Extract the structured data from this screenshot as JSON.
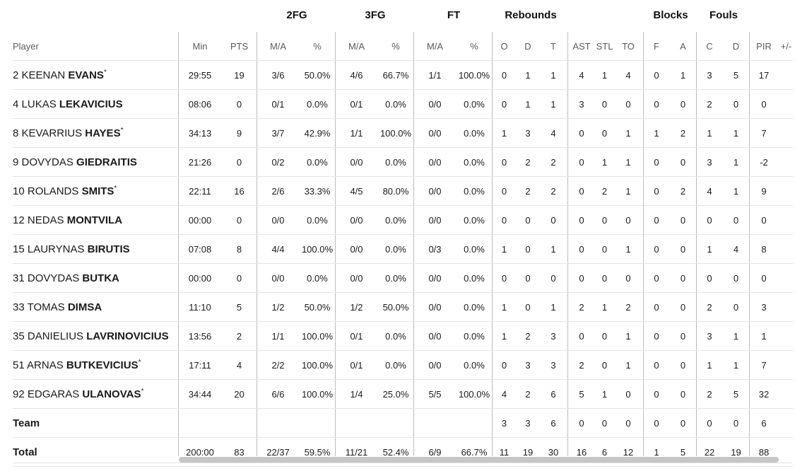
{
  "groups": {
    "fg2": "2FG",
    "fg3": "3FG",
    "ft": "FT",
    "rebounds": "Rebounds",
    "blocks": "Blocks",
    "fouls": "Fouls"
  },
  "headers": [
    "Player",
    "Min",
    "PTS",
    "M/A",
    "%",
    "M/A",
    "%",
    "M/A",
    "%",
    "O",
    "D",
    "T",
    "AST",
    "STL",
    "TO",
    "F",
    "A",
    "C",
    "D",
    "PIR",
    "+/-"
  ],
  "players": [
    {
      "num": "2",
      "first": "KEENAN",
      "last": "EVANS",
      "star": true,
      "stats": [
        "29:55",
        "19",
        "3/6",
        "50.0%",
        "4/6",
        "66.7%",
        "1/1",
        "100.0%",
        "0",
        "1",
        "1",
        "4",
        "1",
        "4",
        "0",
        "1",
        "3",
        "5",
        "17",
        ""
      ]
    },
    {
      "num": "4",
      "first": "LUKAS",
      "last": "LEKAVICIUS",
      "star": false,
      "stats": [
        "08:06",
        "0",
        "0/1",
        "0.0%",
        "0/1",
        "0.0%",
        "0/0",
        "0.0%",
        "0",
        "1",
        "1",
        "3",
        "0",
        "0",
        "0",
        "0",
        "2",
        "0",
        "0",
        ""
      ]
    },
    {
      "num": "8",
      "first": "KEVARRIUS",
      "last": "HAYES",
      "star": true,
      "stats": [
        "34:13",
        "9",
        "3/7",
        "42.9%",
        "1/1",
        "100.0%",
        "0/0",
        "0.0%",
        "1",
        "3",
        "4",
        "0",
        "0",
        "1",
        "1",
        "2",
        "1",
        "1",
        "7",
        ""
      ]
    },
    {
      "num": "9",
      "first": "DOVYDAS",
      "last": "GIEDRAITIS",
      "star": false,
      "stats": [
        "21:26",
        "0",
        "0/2",
        "0.0%",
        "0/0",
        "0.0%",
        "0/0",
        "0.0%",
        "0",
        "2",
        "2",
        "0",
        "1",
        "1",
        "0",
        "0",
        "3",
        "1",
        "-2",
        ""
      ]
    },
    {
      "num": "10",
      "first": "ROLANDS",
      "last": "SMITS",
      "star": true,
      "stats": [
        "22:11",
        "16",
        "2/6",
        "33.3%",
        "4/5",
        "80.0%",
        "0/0",
        "0.0%",
        "0",
        "2",
        "2",
        "0",
        "2",
        "1",
        "0",
        "2",
        "4",
        "1",
        "9",
        ""
      ]
    },
    {
      "num": "12",
      "first": "NEDAS",
      "last": "MONTVILA",
      "star": false,
      "stats": [
        "00:00",
        "0",
        "0/0",
        "0.0%",
        "0/0",
        "0.0%",
        "0/0",
        "0.0%",
        "0",
        "0",
        "0",
        "0",
        "0",
        "0",
        "0",
        "0",
        "0",
        "0",
        "0",
        ""
      ]
    },
    {
      "num": "15",
      "first": "LAURYNAS",
      "last": "BIRUTIS",
      "star": false,
      "stats": [
        "07:08",
        "8",
        "4/4",
        "100.0%",
        "0/0",
        "0.0%",
        "0/3",
        "0.0%",
        "1",
        "0",
        "1",
        "0",
        "0",
        "1",
        "0",
        "0",
        "1",
        "4",
        "8",
        ""
      ]
    },
    {
      "num": "31",
      "first": "DOVYDAS",
      "last": "BUTKA",
      "star": false,
      "stats": [
        "00:00",
        "0",
        "0/0",
        "0.0%",
        "0/0",
        "0.0%",
        "0/0",
        "0.0%",
        "0",
        "0",
        "0",
        "0",
        "0",
        "0",
        "0",
        "0",
        "0",
        "0",
        "0",
        ""
      ]
    },
    {
      "num": "33",
      "first": "TOMAS",
      "last": "DIMSA",
      "star": false,
      "stats": [
        "11:10",
        "5",
        "1/2",
        "50.0%",
        "1/2",
        "50.0%",
        "0/0",
        "0.0%",
        "1",
        "0",
        "1",
        "2",
        "1",
        "2",
        "0",
        "0",
        "2",
        "0",
        "3",
        ""
      ]
    },
    {
      "num": "35",
      "first": "DANIELIUS",
      "last": "LAVRINOVICIUS",
      "star": false,
      "stats": [
        "13:56",
        "2",
        "1/1",
        "100.0%",
        "0/1",
        "0.0%",
        "0/0",
        "0.0%",
        "1",
        "2",
        "3",
        "0",
        "0",
        "1",
        "0",
        "0",
        "3",
        "1",
        "1",
        ""
      ]
    },
    {
      "num": "51",
      "first": "ARNAS",
      "last": "BUTKEVICIUS",
      "star": true,
      "stats": [
        "17:11",
        "4",
        "2/2",
        "100.0%",
        "0/1",
        "0.0%",
        "0/0",
        "0.0%",
        "0",
        "3",
        "3",
        "2",
        "0",
        "1",
        "0",
        "0",
        "1",
        "1",
        "7",
        ""
      ]
    },
    {
      "num": "92",
      "first": "EDGARAS",
      "last": "ULANOVAS",
      "star": true,
      "stats": [
        "34:44",
        "20",
        "6/6",
        "100.0%",
        "1/4",
        "25.0%",
        "5/5",
        "100.0%",
        "4",
        "2",
        "6",
        "5",
        "1",
        "0",
        "0",
        "0",
        "2",
        "5",
        "32",
        ""
      ]
    }
  ],
  "team": {
    "label": "Team",
    "stats": [
      "",
      "",
      "",
      "",
      "",
      "",
      "",
      "",
      "3",
      "3",
      "6",
      "0",
      "0",
      "0",
      "0",
      "0",
      "0",
      "0",
      "6",
      ""
    ]
  },
  "total": {
    "label": "Total",
    "stats": [
      "200:00",
      "83",
      "22/37",
      "59.5%",
      "11/21",
      "52.4%",
      "6/9",
      "66.7%",
      "11",
      "19",
      "30",
      "16",
      "6",
      "12",
      "1",
      "5",
      "22",
      "19",
      "88",
      ""
    ]
  }
}
